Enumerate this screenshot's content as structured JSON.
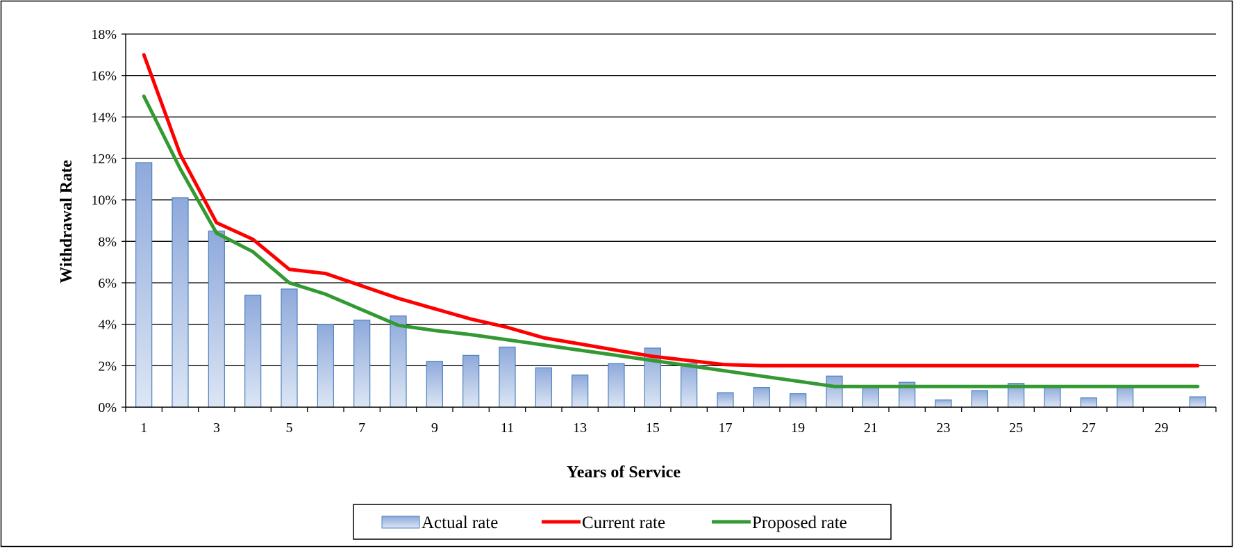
{
  "chart_data": {
    "type": "bar",
    "title": "",
    "xlabel": "Years of Service",
    "ylabel": "Withdrawal  Rate",
    "x": [
      1,
      2,
      3,
      4,
      5,
      6,
      7,
      8,
      9,
      10,
      11,
      12,
      13,
      14,
      15,
      16,
      17,
      18,
      19,
      20,
      21,
      22,
      23,
      24,
      25,
      26,
      27,
      28,
      29,
      30
    ],
    "x_tick_labels": [
      "1",
      "3",
      "5",
      "7",
      "9",
      "11",
      "13",
      "15",
      "17",
      "19",
      "21",
      "23",
      "25",
      "27",
      "29"
    ],
    "y_tick_labels": [
      "0%",
      "2%",
      "4%",
      "6%",
      "8%",
      "10%",
      "12%",
      "14%",
      "16%",
      "18%"
    ],
    "ylim": [
      0,
      18
    ],
    "y_unit": "%",
    "grid": "horizontal",
    "legend_position": "bottom",
    "series": [
      {
        "name": "Actual rate",
        "type": "bar",
        "color": "#8EA9DB",
        "values": [
          11.8,
          10.1,
          8.5,
          5.4,
          5.7,
          4.0,
          4.2,
          4.4,
          2.2,
          2.5,
          2.9,
          1.9,
          1.55,
          2.1,
          2.85,
          2.1,
          0.7,
          0.95,
          0.65,
          1.5,
          1.0,
          1.2,
          0.35,
          0.8,
          1.15,
          1.0,
          0.45,
          1.0,
          0,
          0.5
        ]
      },
      {
        "name": "Current rate",
        "type": "line",
        "color": "#FF0000",
        "values": [
          17.0,
          12.2,
          8.9,
          8.1,
          6.65,
          6.45,
          5.85,
          5.25,
          4.75,
          4.25,
          3.85,
          3.35,
          3.05,
          2.75,
          2.45,
          2.25,
          2.05,
          2.0,
          2.0,
          2.0,
          2.0,
          2.0,
          2.0,
          2.0,
          2.0,
          2.0,
          2.0,
          2.0,
          2.0,
          2.0
        ]
      },
      {
        "name": "Proposed rate",
        "type": "line",
        "color": "#339933",
        "values": [
          15.0,
          11.5,
          8.4,
          7.5,
          6.0,
          5.45,
          4.7,
          3.95,
          3.7,
          3.5,
          3.25,
          3.0,
          2.75,
          2.5,
          2.25,
          2.0,
          1.75,
          1.5,
          1.25,
          1.0,
          1.0,
          1.0,
          1.0,
          1.0,
          1.0,
          1.0,
          1.0,
          1.0,
          1.0,
          1.0
        ]
      }
    ]
  }
}
